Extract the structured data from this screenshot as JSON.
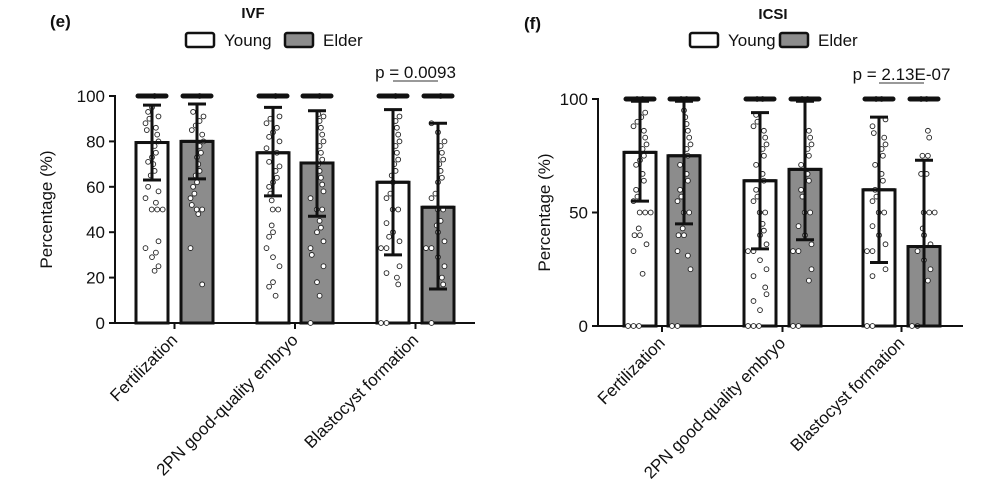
{
  "chart_data": [
    {
      "type": "bar",
      "panel_label": "(e)",
      "title": "IVF",
      "ylabel": "Percentage (%)",
      "ylim": [
        0,
        100
      ],
      "yticks": [
        "0",
        "20",
        "40",
        "60",
        "80",
        "100"
      ],
      "categories": [
        "Fertilization",
        "2PN good-quality embryo",
        "Blastocyst formation"
      ],
      "legend": {
        "placement": "top",
        "entries": [
          "Young",
          "Elder"
        ]
      },
      "series": [
        {
          "name": "Young",
          "color": "#ffffff",
          "values": [
            79.5,
            75,
            62
          ],
          "sd_low": [
            63,
            56,
            30
          ],
          "sd_high": [
            96,
            95,
            94
          ],
          "points": [
            [
              100,
              95,
              93,
              91,
              90,
              88,
              86,
              85,
              83,
              80,
              78,
              75,
              73,
              71,
              70,
              67,
              65,
              60,
              58,
              55,
              53,
              50,
              50,
              50,
              36,
              33,
              31,
              29,
              25,
              23
            ],
            [
              100,
              91,
              90,
              88,
              86,
              84,
              82,
              80,
              77,
              75,
              71,
              69,
              67,
              64,
              62,
              60,
              57,
              54,
              50,
              50,
              43,
              40,
              38,
              33,
              29,
              25,
              18,
              16,
              12
            ],
            [
              100,
              91,
              89,
              86,
              83,
              80,
              78,
              75,
              72,
              70,
              67,
              65,
              62,
              57,
              55,
              50,
              50,
              44,
              40,
              38,
              36,
              33,
              33,
              25,
              22,
              20,
              17,
              0,
              0
            ]
          ]
        },
        {
          "name": "Elder",
          "color": "#8c8c8c",
          "values": [
            80,
            70.5,
            51
          ],
          "sd_low": [
            63.5,
            47,
            15
          ],
          "sd_high": [
            96.5,
            93.5,
            88
          ],
          "points": [
            [
              100,
              93,
              91,
              89,
              87,
              85,
              83,
              80,
              78,
              75,
              73,
              70,
              67,
              65,
              62,
              60,
              57,
              55,
              52,
              50,
              50,
              48,
              33,
              17
            ],
            [
              100,
              92,
              91,
              89,
              86,
              83,
              80,
              78,
              75,
              72,
              70,
              67,
              64,
              61,
              58,
              55,
              50,
              50,
              45,
              42,
              40,
              36,
              33,
              30,
              25,
              18,
              12,
              0
            ],
            [
              100,
              88,
              84,
              80,
              78,
              75,
              72,
              70,
              67,
              64,
              62,
              57,
              55,
              50,
              50,
              45,
              43,
              40,
              36,
              33,
              33,
              29,
              25,
              20,
              17,
              0
            ]
          ]
        }
      ],
      "annotations": [
        {
          "text": "p = 0.0093",
          "category": "Blastocyst formation"
        }
      ]
    },
    {
      "type": "bar",
      "panel_label": "(f)",
      "title": "ICSI",
      "ylabel": "Percentage (%)",
      "ylim": [
        0,
        100
      ],
      "yticks": [
        "0",
        "50",
        "100"
      ],
      "categories": [
        "Fertilization",
        "2PN good-quality embryo",
        "Blastocyst formation"
      ],
      "legend": {
        "placement": "top",
        "entries": [
          "Young",
          "Elder"
        ]
      },
      "series": [
        {
          "name": "Young",
          "color": "#ffffff",
          "values": [
            76.5,
            64,
            60
          ],
          "sd_low": [
            55,
            34,
            28
          ],
          "sd_high": [
            99,
            94,
            92
          ],
          "points": [
            [
              100,
              100,
              94,
              92,
              90,
              88,
              86,
              83,
              80,
              78,
              75,
              73,
              71,
              67,
              64,
              60,
              57,
              55,
              50,
              50,
              50,
              43,
              40,
              40,
              36,
              33,
              23,
              0,
              0,
              0
            ],
            [
              100,
              100,
              93,
              90,
              88,
              86,
              83,
              80,
              78,
              75,
              71,
              67,
              64,
              60,
              57,
              55,
              50,
              50,
              45,
              42,
              40,
              36,
              33,
              33,
              29,
              25,
              22,
              17,
              14,
              11,
              7,
              0,
              0,
              0
            ],
            [
              100,
              100,
              91,
              88,
              85,
              83,
              80,
              78,
              75,
              71,
              67,
              64,
              60,
              57,
              55,
              50,
              50,
              44,
              40,
              36,
              33,
              33,
              25,
              22,
              0,
              0
            ]
          ]
        },
        {
          "name": "Elder",
          "color": "#8c8c8c",
          "values": [
            75,
            69,
            35
          ],
          "sd_low": [
            45,
            38,
            0
          ],
          "sd_high": [
            99,
            99,
            73
          ],
          "points": [
            [
              100,
              100,
              95,
              92,
              89,
              86,
              83,
              80,
              78,
              75,
              71,
              67,
              64,
              60,
              57,
              55,
              50,
              50,
              43,
              40,
              40,
              33,
              31,
              25,
              0,
              0
            ],
            [
              100,
              100,
              86,
              83,
              80,
              78,
              75,
              71,
              67,
              64,
              60,
              57,
              50,
              50,
              44,
              40,
              36,
              33,
              33,
              25,
              20,
              0,
              0
            ],
            [
              100,
              100,
              86,
              83,
              75,
              75,
              67,
              67,
              50,
              50,
              50,
              43,
              40,
              36,
              33,
              29,
              25,
              20,
              0,
              0
            ]
          ]
        }
      ],
      "annotations": [
        {
          "text": "p = 2.13E-07",
          "category": "Blastocyst formation"
        }
      ]
    }
  ]
}
